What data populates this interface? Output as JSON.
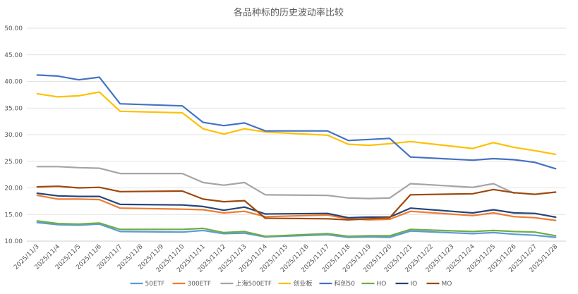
{
  "chart_data": {
    "type": "line",
    "title": "各品种标的历史波动率比较",
    "xlabel": "",
    "ylabel": "",
    "ylim": [
      10,
      50
    ],
    "yticks": [
      "10.00",
      "15.00",
      "20.00",
      "25.00",
      "30.00",
      "35.00",
      "40.00",
      "45.00",
      "50.00"
    ],
    "grid": true,
    "legend_position": "bottom",
    "categories": [
      "2025/11/3",
      "2025/11/4",
      "2025/11/5",
      "2025/11/6",
      "2025/11/7",
      "2025/11/8",
      "2025/11/9",
      "2025/11/10",
      "2025/11/11",
      "2025/11/12",
      "2025/11/13",
      "2025/11/14",
      "2025/11/15",
      "2025/11/16",
      "2025/11/17",
      "2025/11/18",
      "2025/11/19",
      "2025/11/20",
      "2025/11/21",
      "2025/11/22",
      "2025/11/23",
      "2025/11/24",
      "2025/11/25",
      "2025/11/26",
      "2025/11/27",
      "2025/11/28"
    ],
    "series": [
      {
        "name": "50ETF",
        "color": "#5b9bd5",
        "values": [
          13.5,
          13.1,
          13.0,
          13.2,
          11.8,
          null,
          null,
          11.7,
          12.0,
          11.4,
          11.5,
          10.8,
          null,
          null,
          11.2,
          10.7,
          10.8,
          10.7,
          11.9,
          null,
          null,
          11.4,
          11.6,
          11.3,
          11.1,
          10.7
        ]
      },
      {
        "name": "300ETF",
        "color": "#ed7d31",
        "values": [
          18.6,
          17.9,
          17.9,
          17.8,
          16.2,
          null,
          null,
          16.0,
          15.9,
          15.3,
          15.6,
          14.6,
          null,
          null,
          14.9,
          14.2,
          14.0,
          14.1,
          15.6,
          null,
          null,
          14.8,
          15.3,
          14.6,
          14.4,
          13.9
        ]
      },
      {
        "name": "上海500ETF",
        "color": "#a5a5a5",
        "values": [
          24.0,
          24.0,
          23.8,
          23.7,
          22.7,
          null,
          null,
          22.7,
          21.0,
          20.5,
          21.0,
          18.7,
          null,
          null,
          18.6,
          18.1,
          18.0,
          18.1,
          20.8,
          null,
          null,
          20.1,
          20.8,
          19.0,
          null,
          null
        ]
      },
      {
        "name": "创业板",
        "color": "#ffc000",
        "values": [
          37.7,
          37.1,
          37.3,
          38.0,
          34.4,
          null,
          null,
          34.1,
          31.1,
          30.1,
          31.1,
          30.5,
          null,
          null,
          29.9,
          28.2,
          28.0,
          28.3,
          28.7,
          null,
          null,
          27.4,
          28.5,
          27.6,
          27.0,
          26.3
        ]
      },
      {
        "name": "科创50",
        "color": "#4472c4",
        "values": [
          41.2,
          41.0,
          40.3,
          40.8,
          35.8,
          null,
          null,
          35.4,
          32.3,
          31.7,
          32.2,
          30.7,
          null,
          null,
          30.7,
          28.9,
          29.1,
          29.3,
          25.8,
          null,
          null,
          25.2,
          25.5,
          25.3,
          24.8,
          23.6
        ]
      },
      {
        "name": "HO",
        "color": "#70ad47",
        "values": [
          13.8,
          13.3,
          13.2,
          13.4,
          12.2,
          null,
          null,
          12.2,
          12.4,
          11.6,
          11.8,
          10.9,
          null,
          null,
          11.4,
          10.9,
          11.0,
          11.0,
          12.2,
          null,
          null,
          11.8,
          12.0,
          11.8,
          11.7,
          11.0
        ]
      },
      {
        "name": "IO",
        "color": "#264478",
        "values": [
          19.0,
          18.5,
          18.4,
          18.4,
          16.9,
          null,
          null,
          16.8,
          16.5,
          15.8,
          16.4,
          15.1,
          null,
          null,
          15.2,
          14.4,
          14.5,
          14.5,
          16.2,
          null,
          null,
          15.3,
          15.9,
          15.3,
          15.2,
          14.5
        ]
      },
      {
        "name": "MO",
        "color": "#9e480e",
        "values": [
          20.2,
          20.3,
          20.0,
          20.1,
          19.3,
          null,
          null,
          19.4,
          17.9,
          17.4,
          17.6,
          14.3,
          null,
          null,
          14.2,
          14.0,
          14.2,
          14.4,
          18.7,
          null,
          null,
          18.9,
          19.7,
          19.1,
          18.8,
          19.2
        ]
      }
    ]
  }
}
